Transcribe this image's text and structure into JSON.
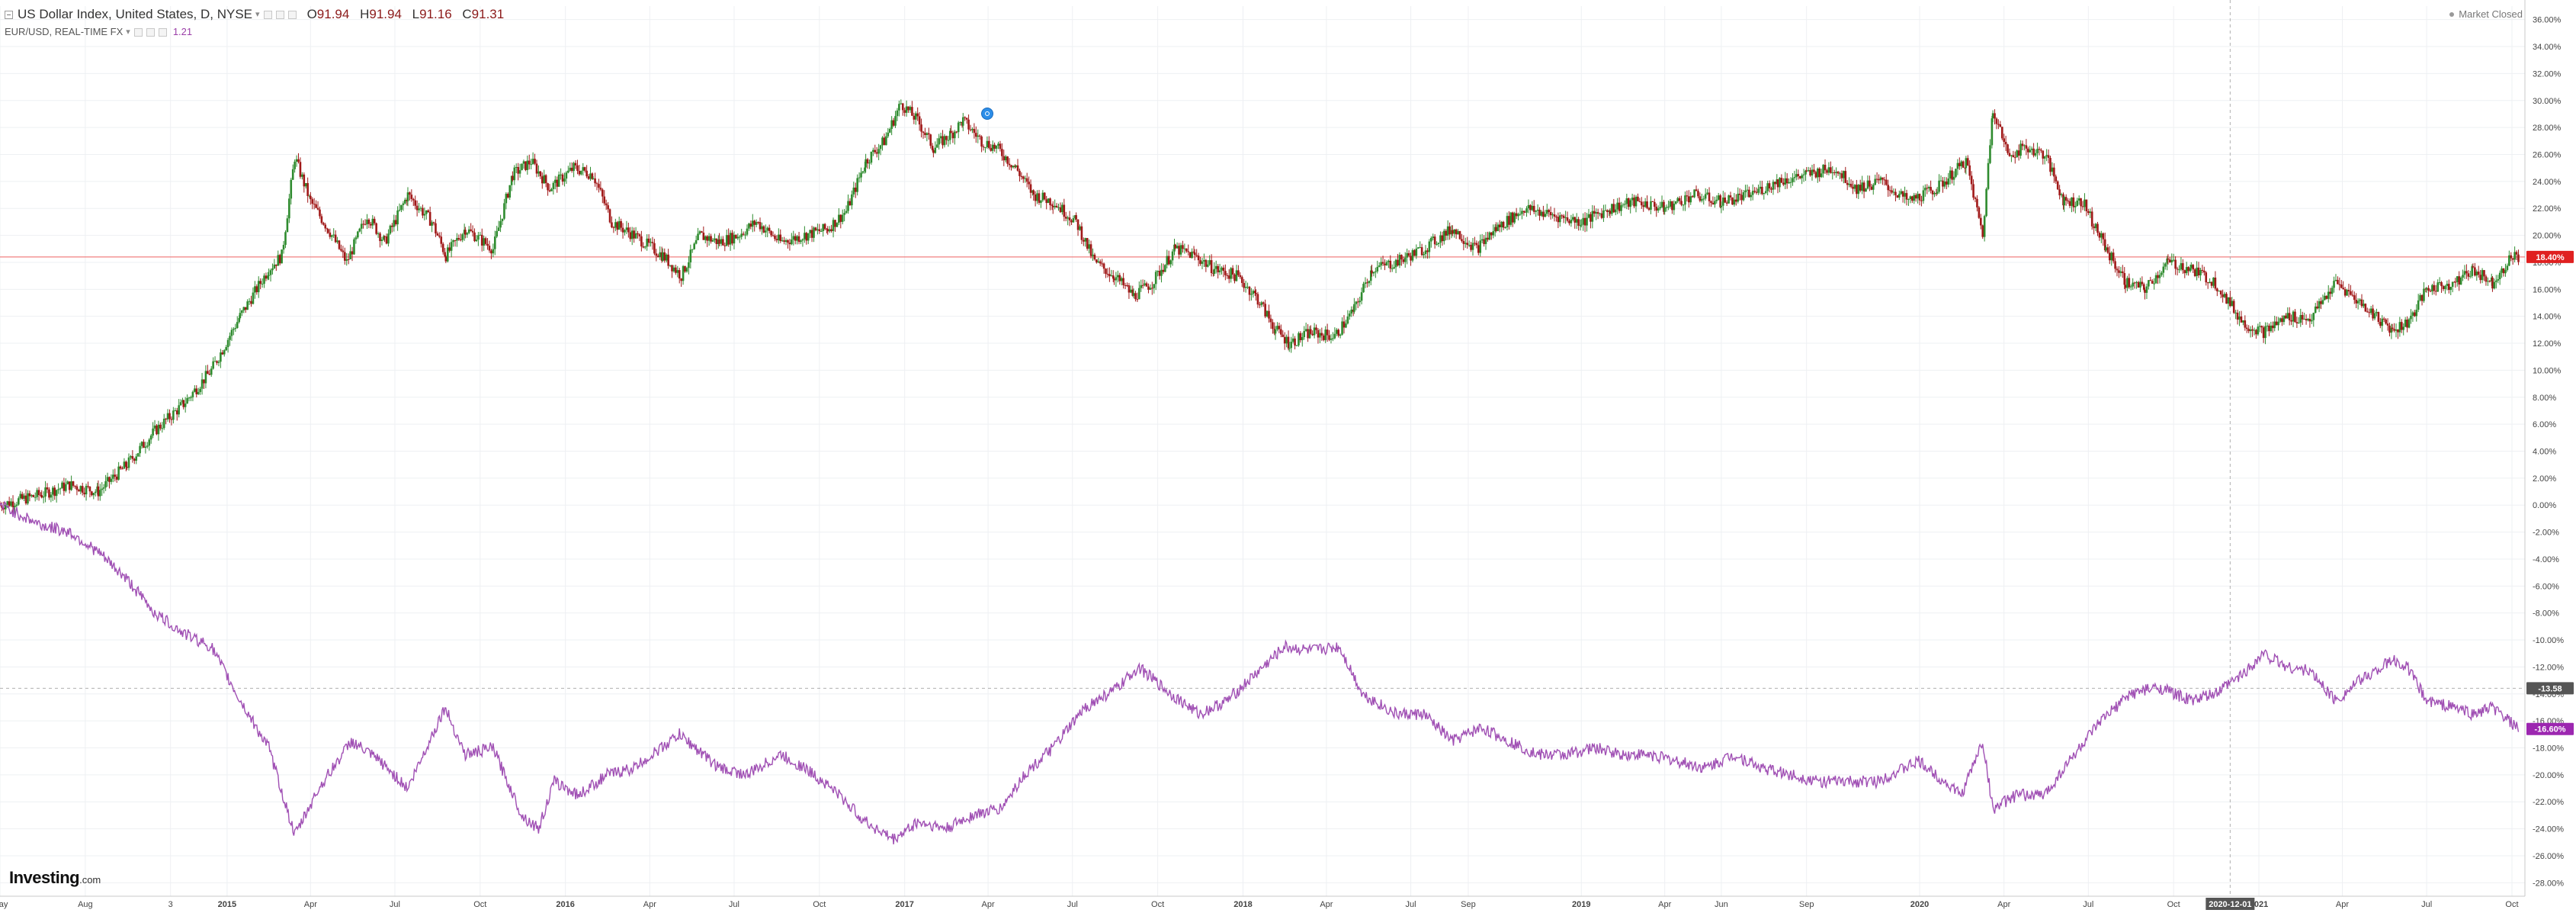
{
  "legend": {
    "instrument": "US Dollar Index, United States, D, NYSE",
    "open_label": "O",
    "open_value": "91.94",
    "high_label": "H",
    "high_value": "91.94",
    "low_label": "L",
    "low_value": "91.16",
    "close_label": "C",
    "close_value": "91.31",
    "compare_name": "EUR/USD, REAL-TIME FX",
    "compare_value": "1.21"
  },
  "market_status": "Market Closed",
  "logo": {
    "brand": "Investing",
    "suffix": ".com"
  },
  "colors": {
    "up_candle": "#2e8b2e",
    "down_candle": "#a01818",
    "compare_line": "#a050b4",
    "last_price_line": "#f08080",
    "last_price_badge": "#e02020",
    "compare_badge": "#9c27b0",
    "crosshair_badge": "#555555",
    "axis_text": "#444444",
    "grid": "#eef0f3"
  },
  "icons": [
    "collapse-icon",
    "settings-icon",
    "event-marker-icon"
  ],
  "chart_data": {
    "type": "line",
    "y_axis": {
      "unit": "percent",
      "ylim": [
        -29,
        37
      ],
      "tick_labels": [
        "36.00%",
        "34.00%",
        "32.00%",
        "30.00%",
        "28.00%",
        "26.00%",
        "24.00%",
        "22.00%",
        "20.00%",
        "18.00%",
        "16.00%",
        "14.00%",
        "12.00%",
        "10.00%",
        "8.00%",
        "6.00%",
        "4.00%",
        "2.00%",
        "0.00%",
        "-2.00%",
        "-4.00%",
        "-6.00%",
        "-8.00%",
        "-10.00%",
        "-12.00%",
        "-14.00%",
        "-16.00%",
        "-18.00%",
        "-20.00%",
        "-22.00%",
        "-24.00%",
        "-26.00%",
        "-28.00%"
      ],
      "position": "right"
    },
    "x_axis": {
      "xlim": [
        "2014-05-01",
        "2021-10-15"
      ],
      "ticks": [
        {
          "date": "2014-05-01",
          "label": "May"
        },
        {
          "date": "2014-08-01",
          "label": "Aug"
        },
        {
          "date": "2014-11-01",
          "label": "3"
        },
        {
          "date": "2015-01-01",
          "label": "2015"
        },
        {
          "date": "2015-04-01",
          "label": "Apr"
        },
        {
          "date": "2015-07-01",
          "label": "Jul"
        },
        {
          "date": "2015-10-01",
          "label": "Oct"
        },
        {
          "date": "2016-01-01",
          "label": "2016"
        },
        {
          "date": "2016-04-01",
          "label": "Apr"
        },
        {
          "date": "2016-07-01",
          "label": "Jul"
        },
        {
          "date": "2016-10-01",
          "label": "Oct"
        },
        {
          "date": "2017-01-01",
          "label": "2017"
        },
        {
          "date": "2017-04-01",
          "label": "Apr"
        },
        {
          "date": "2017-07-01",
          "label": "Jul"
        },
        {
          "date": "2017-10-01",
          "label": "Oct"
        },
        {
          "date": "2018-01-01",
          "label": "2018"
        },
        {
          "date": "2018-04-01",
          "label": "Apr"
        },
        {
          "date": "2018-07-01",
          "label": "Jul"
        },
        {
          "date": "2018-09-01",
          "label": "Sep"
        },
        {
          "date": "2019-01-01",
          "label": "2019"
        },
        {
          "date": "2019-04-01",
          "label": "Apr"
        },
        {
          "date": "2019-06-01",
          "label": "Jun"
        },
        {
          "date": "2019-09-01",
          "label": "Sep"
        },
        {
          "date": "2020-01-01",
          "label": "2020"
        },
        {
          "date": "2020-04-01",
          "label": "Apr"
        },
        {
          "date": "2020-07-01",
          "label": "Jul"
        },
        {
          "date": "2020-10-01",
          "label": "Oct"
        },
        {
          "date": "2021-01-01",
          "label": "2021"
        },
        {
          "date": "2021-04-01",
          "label": "Apr"
        },
        {
          "date": "2021-07-01",
          "label": "Jul"
        },
        {
          "date": "2021-10-01",
          "label": "Oct"
        }
      ]
    },
    "grid": true,
    "legend_placement": "top-left",
    "series": [
      {
        "name": "US Dollar Index, United States, D, NYSE",
        "style": "candlestick",
        "points": [
          [
            "2014-05-01",
            0.0
          ],
          [
            "2014-06-15",
            0.8
          ],
          [
            "2014-07-15",
            1.5
          ],
          [
            "2014-08-15",
            1.0
          ],
          [
            "2014-09-15",
            3.0
          ],
          [
            "2014-10-15",
            5.5
          ],
          [
            "2014-11-15",
            7.5
          ],
          [
            "2014-12-15",
            10.0
          ],
          [
            "2015-01-15",
            14.0
          ],
          [
            "2015-02-15",
            17.5
          ],
          [
            "2015-03-01",
            18.5
          ],
          [
            "2015-03-15",
            25.8
          ],
          [
            "2015-04-01",
            22.5
          ],
          [
            "2015-04-20",
            20.5
          ],
          [
            "2015-05-10",
            18.0
          ],
          [
            "2015-06-01",
            21.5
          ],
          [
            "2015-06-20",
            19.5
          ],
          [
            "2015-07-15",
            23.0
          ],
          [
            "2015-08-10",
            21.0
          ],
          [
            "2015-08-25",
            18.5
          ],
          [
            "2015-09-15",
            20.5
          ],
          [
            "2015-10-15",
            19.0
          ],
          [
            "2015-11-05",
            24.5
          ],
          [
            "2015-11-25",
            25.5
          ],
          [
            "2015-12-15",
            23.5
          ],
          [
            "2016-01-10",
            25.0
          ],
          [
            "2016-01-31",
            24.5
          ],
          [
            "2016-02-20",
            21.0
          ],
          [
            "2016-03-15",
            20.0
          ],
          [
            "2016-04-15",
            18.5
          ],
          [
            "2016-05-05",
            17.0
          ],
          [
            "2016-05-25",
            20.0
          ],
          [
            "2016-06-15",
            19.5
          ],
          [
            "2016-07-05",
            20.0
          ],
          [
            "2016-07-25",
            21.0
          ],
          [
            "2016-08-20",
            19.5
          ],
          [
            "2016-09-15",
            20.0
          ],
          [
            "2016-10-10",
            20.5
          ],
          [
            "2016-10-30",
            21.8
          ],
          [
            "2016-11-20",
            25.5
          ],
          [
            "2016-12-10",
            27.0
          ],
          [
            "2016-12-28",
            29.8
          ],
          [
            "2017-01-15",
            28.5
          ],
          [
            "2017-02-01",
            26.5
          ],
          [
            "2017-02-20",
            27.5
          ],
          [
            "2017-03-05",
            28.5
          ],
          [
            "2017-03-25",
            27.0
          ],
          [
            "2017-04-10",
            26.5
          ],
          [
            "2017-05-01",
            25.0
          ],
          [
            "2017-05-20",
            23.0
          ],
          [
            "2017-06-10",
            22.5
          ],
          [
            "2017-07-05",
            21.0
          ],
          [
            "2017-07-25",
            18.0
          ],
          [
            "2017-08-15",
            17.0
          ],
          [
            "2017-09-05",
            15.5
          ],
          [
            "2017-09-25",
            16.5
          ],
          [
            "2017-10-20",
            19.0
          ],
          [
            "2017-11-10",
            18.5
          ],
          [
            "2017-12-01",
            17.5
          ],
          [
            "2017-12-25",
            17.0
          ],
          [
            "2018-01-15",
            15.5
          ],
          [
            "2018-02-05",
            13.0
          ],
          [
            "2018-02-20",
            12.0
          ],
          [
            "2018-03-15",
            12.8
          ],
          [
            "2018-04-10",
            12.5
          ],
          [
            "2018-05-01",
            14.5
          ],
          [
            "2018-05-20",
            17.5
          ],
          [
            "2018-06-15",
            18.0
          ],
          [
            "2018-07-15",
            19.0
          ],
          [
            "2018-08-15",
            20.5
          ],
          [
            "2018-09-10",
            19.0
          ],
          [
            "2018-10-01",
            20.5
          ],
          [
            "2018-11-01",
            22.0
          ],
          [
            "2018-12-01",
            21.5
          ],
          [
            "2019-01-01",
            21.0
          ],
          [
            "2019-02-01",
            22.0
          ],
          [
            "2019-03-01",
            22.5
          ],
          [
            "2019-04-01",
            22.0
          ],
          [
            "2019-05-01",
            23.0
          ],
          [
            "2019-06-01",
            22.5
          ],
          [
            "2019-07-01",
            23.0
          ],
          [
            "2019-08-01",
            24.0
          ],
          [
            "2019-09-01",
            24.5
          ],
          [
            "2019-10-01",
            25.0
          ],
          [
            "2019-10-25",
            23.5
          ],
          [
            "2019-11-20",
            24.0
          ],
          [
            "2019-12-20",
            22.5
          ],
          [
            "2020-01-20",
            23.5
          ],
          [
            "2020-02-20",
            25.5
          ],
          [
            "2020-03-09",
            20.0
          ],
          [
            "2020-03-20",
            29.5
          ],
          [
            "2020-04-05",
            26.0
          ],
          [
            "2020-04-25",
            26.5
          ],
          [
            "2020-05-15",
            26.0
          ],
          [
            "2020-06-05",
            22.5
          ],
          [
            "2020-06-25",
            22.5
          ],
          [
            "2020-07-20",
            19.0
          ],
          [
            "2020-08-10",
            16.5
          ],
          [
            "2020-08-31",
            16.0
          ],
          [
            "2020-09-25",
            18.0
          ],
          [
            "2020-10-20",
            17.5
          ],
          [
            "2020-11-15",
            16.5
          ],
          [
            "2020-12-15",
            13.5
          ],
          [
            "2021-01-06",
            12.8
          ],
          [
            "2021-02-01",
            14.0
          ],
          [
            "2021-02-25",
            13.8
          ],
          [
            "2021-03-25",
            16.5
          ],
          [
            "2021-04-20",
            15.0
          ],
          [
            "2021-05-25",
            13.0
          ],
          [
            "2021-06-10",
            13.5
          ],
          [
            "2021-07-01",
            16.0
          ],
          [
            "2021-08-01",
            16.5
          ],
          [
            "2021-08-20",
            17.5
          ],
          [
            "2021-09-10",
            16.5
          ],
          [
            "2021-09-30",
            18.4
          ],
          [
            "2021-10-08",
            18.4
          ]
        ]
      },
      {
        "name": "EUR/USD, REAL-TIME FX",
        "style": "line",
        "points": [
          [
            "2014-05-01",
            0.0
          ],
          [
            "2014-06-15",
            -1.5
          ],
          [
            "2014-07-15",
            -2.0
          ],
          [
            "2014-08-15",
            -3.5
          ],
          [
            "2014-09-15",
            -5.5
          ],
          [
            "2014-10-15",
            -8.0
          ],
          [
            "2014-11-15",
            -9.5
          ],
          [
            "2014-12-15",
            -10.5
          ],
          [
            "2015-01-15",
            -14.5
          ],
          [
            "2015-02-15",
            -18.0
          ],
          [
            "2015-03-15",
            -24.5
          ],
          [
            "2015-04-10",
            -21.0
          ],
          [
            "2015-05-15",
            -17.5
          ],
          [
            "2015-06-15",
            -19.0
          ],
          [
            "2015-07-15",
            -21.0
          ],
          [
            "2015-08-24",
            -15.0
          ],
          [
            "2015-09-15",
            -18.5
          ],
          [
            "2015-10-15",
            -18.0
          ],
          [
            "2015-11-15",
            -23.0
          ],
          [
            "2015-12-03",
            -24.0
          ],
          [
            "2015-12-20",
            -20.5
          ],
          [
            "2016-01-15",
            -21.5
          ],
          [
            "2016-02-15",
            -20.0
          ],
          [
            "2016-03-15",
            -19.5
          ],
          [
            "2016-05-03",
            -17.0
          ],
          [
            "2016-06-15",
            -19.5
          ],
          [
            "2016-07-15",
            -20.0
          ],
          [
            "2016-08-20",
            -18.5
          ],
          [
            "2016-09-15",
            -19.5
          ],
          [
            "2016-10-15",
            -21.0
          ],
          [
            "2016-11-20",
            -23.5
          ],
          [
            "2016-12-20",
            -24.8
          ],
          [
            "2017-01-15",
            -23.5
          ],
          [
            "2017-02-15",
            -24.0
          ],
          [
            "2017-03-15",
            -23.0
          ],
          [
            "2017-04-15",
            -22.5
          ],
          [
            "2017-05-10",
            -20.0
          ],
          [
            "2017-06-10",
            -18.0
          ],
          [
            "2017-07-15",
            -15.0
          ],
          [
            "2017-08-20",
            -13.5
          ],
          [
            "2017-09-10",
            -12.0
          ],
          [
            "2017-10-15",
            -14.0
          ],
          [
            "2017-11-15",
            -15.5
          ],
          [
            "2017-12-15",
            -14.5
          ],
          [
            "2018-01-15",
            -12.5
          ],
          [
            "2018-02-15",
            -10.5
          ],
          [
            "2018-03-15",
            -10.8
          ],
          [
            "2018-04-15",
            -10.5
          ],
          [
            "2018-05-10",
            -14.0
          ],
          [
            "2018-06-15",
            -15.5
          ],
          [
            "2018-07-15",
            -15.5
          ],
          [
            "2018-08-15",
            -17.5
          ],
          [
            "2018-09-15",
            -16.5
          ],
          [
            "2018-10-15",
            -17.5
          ],
          [
            "2018-11-15",
            -18.5
          ],
          [
            "2018-12-15",
            -18.5
          ],
          [
            "2019-01-15",
            -18.0
          ],
          [
            "2019-02-15",
            -18.5
          ],
          [
            "2019-03-15",
            -18.5
          ],
          [
            "2019-04-15",
            -19.0
          ],
          [
            "2019-05-15",
            -19.5
          ],
          [
            "2019-06-15",
            -18.5
          ],
          [
            "2019-07-15",
            -19.5
          ],
          [
            "2019-08-15",
            -20.0
          ],
          [
            "2019-09-15",
            -20.5
          ],
          [
            "2019-10-15",
            -20.5
          ],
          [
            "2019-11-15",
            -20.5
          ],
          [
            "2019-12-31",
            -19.0
          ],
          [
            "2020-02-15",
            -21.5
          ],
          [
            "2020-03-09",
            -17.5
          ],
          [
            "2020-03-20",
            -22.5
          ],
          [
            "2020-04-15",
            -21.5
          ],
          [
            "2020-05-15",
            -21.5
          ],
          [
            "2020-06-10",
            -19.0
          ],
          [
            "2020-07-15",
            -16.0
          ],
          [
            "2020-08-15",
            -14.0
          ],
          [
            "2020-09-15",
            -13.5
          ],
          [
            "2020-10-20",
            -14.5
          ],
          [
            "2020-11-15",
            -14.0
          ],
          [
            "2020-12-15",
            -12.5
          ],
          [
            "2021-01-06",
            -11.0
          ],
          [
            "2021-02-01",
            -12.0
          ],
          [
            "2021-02-25",
            -12.3
          ],
          [
            "2021-03-25",
            -14.5
          ],
          [
            "2021-04-20",
            -13.0
          ],
          [
            "2021-05-25",
            -11.5
          ],
          [
            "2021-06-10",
            -12.0
          ],
          [
            "2021-07-01",
            -14.5
          ],
          [
            "2021-08-01",
            -15.0
          ],
          [
            "2021-08-20",
            -15.5
          ],
          [
            "2021-09-10",
            -15.0
          ],
          [
            "2021-10-08",
            -16.6
          ]
        ]
      }
    ],
    "price_labels": {
      "last_price": "18.40%",
      "compare_last": "-16.60%",
      "crosshair_y": "-13.58",
      "crosshair_date": "2020-12-01"
    },
    "reference_lines": {
      "last_price_y": 18.4,
      "crosshair_y": -13.58,
      "crosshair_x": "2020-12-01"
    }
  }
}
